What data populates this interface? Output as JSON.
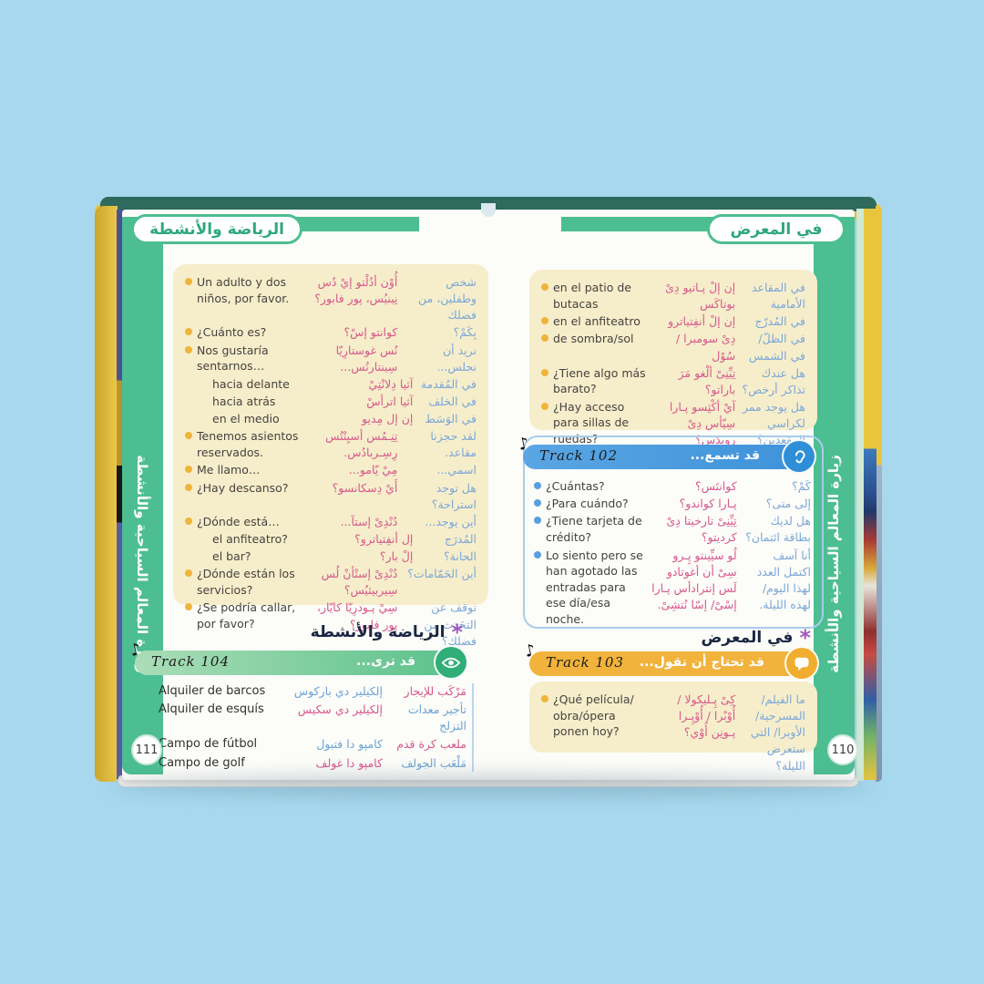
{
  "colors": {
    "background": "#a7d8ee",
    "green": "#4cbe92",
    "cream": "#f6eecb",
    "blue_bar": "#4f9fe0",
    "yellow_bar": "#f1b33b",
    "green_bar": "#5cc28b",
    "pink_text": "#d8578b",
    "blue_text": "#7ba7d8",
    "bullet_yellow": "#f0b43c",
    "bullet_blue": "#58a0dd",
    "asterisk_purple": "#a05ac0",
    "cover_yellow": "#e9c53d",
    "cover_teal": "#2e6b5c"
  },
  "icons": {
    "note": "♪",
    "eye": "eye-icon",
    "ear": "ear-icon",
    "speech": "speech-bubble-icon"
  },
  "left_page": {
    "header": "الرياضة والأنشطة",
    "sidebar": "زيارة المعالم السياحية والأنشطة",
    "page_number": "111",
    "phrases": [
      {
        "es": "Un adulto y dos niños, por favor.",
        "tr": "أُوْن أدُلْتو إيْ دُس نِينيُس، پور فابور؟",
        "ar": "شخص وطفلين، من فضلك"
      },
      {
        "es": "¿Cuánto es?",
        "tr": "كوانتو إسْ؟",
        "ar": "بِكَمْ؟"
      },
      {
        "es": "Nos gustaría sentarnos…",
        "tr": "نُس غوستارِيّا سِينتارنُس...",
        "ar": "نريد أن نجلس..."
      },
      {
        "es": "hacia delante",
        "tr": "آثيا دِلانْتِيْ",
        "ar": "في المُقدمة",
        "indent": true
      },
      {
        "es": "hacia atrás",
        "tr": "آثيا اترأسْ",
        "ar": "في الخلف",
        "indent": true
      },
      {
        "es": "en el medio",
        "tr": "إن إل مِديو",
        "ar": "في الوَسَط",
        "indent": true
      },
      {
        "es": "Tenemos asientos reservados.",
        "tr": "تِنِـمُس أسيِنْتُس رِسِـربادُس.",
        "ar": "لقد حجزنا مقاعد."
      },
      {
        "es": "Me llamo…",
        "tr": "مِيْ يّامو...",
        "ar": "اسمي..."
      },
      {
        "es": "¿Hay descanso?",
        "tr": "أَيْ دِسكانسو؟",
        "ar": "هل توجد استراحة؟"
      },
      {
        "es": "¿Dónde está…",
        "tr": "دُنْدِىْ إستآ...",
        "ar": "أين يوجد..."
      },
      {
        "es": "el anfiteatro?",
        "tr": "إل أنفِتياترو؟",
        "ar": "المُدرَج",
        "indent": true
      },
      {
        "es": "el bar?",
        "tr": "إلْ بار؟",
        "ar": "الحانة؟",
        "indent": true
      },
      {
        "es": "¿Dónde están los servicios?",
        "tr": "دُنْدِىْ إستْأنْ لُس سِيربيثيُس؟",
        "ar": "أين الحَمّامات؟"
      },
      {
        "es": "¿Se podría callar, por favor?",
        "tr": "سِيْ پـودرِيّا كايّار، پور فابور؟",
        "ar": "توقف عن التحَدث من فضلك؟"
      }
    ],
    "section": {
      "asterisk": "*",
      "title": "الرياضة والأنشطة",
      "track_label": "Track 104",
      "prompt": "قد ترى...",
      "icon": "eye-icon",
      "vocab": [
        {
          "es": "Alquiler de barcos",
          "tr": "إلكيلير دي باركوس",
          "ar": "مَرْكَب للإيجار"
        },
        {
          "es": "Alquiler de esquís",
          "tr": "إلكيلير دي سكيس",
          "ar": "تأجير معدات التزلج"
        },
        {
          "es": "Campo de fútbol",
          "tr": "كامپو دا فتبول",
          "ar": "ملعب كرة قدم"
        },
        {
          "es": "Campo de golf",
          "tr": "كامپو دا غولف",
          "ar": "مَلْعَب الجولف"
        }
      ]
    }
  },
  "right_page": {
    "header": "في المعرض",
    "sidebar": "زيارة المعالم السياحية والأنشطة",
    "page_number": "110",
    "phrases": [
      {
        "es": "en el patio de butacas",
        "tr": "إن إلْ پـاتيو دِىْ بوتاكَس",
        "ar": "في المقاعد الأمامية"
      },
      {
        "es": "en el anfiteatro",
        "tr": "إن إلْ أنفِتياترو",
        "ar": "في المُدرّج"
      },
      {
        "es": "de sombra/sol",
        "tr": "دِىْ سومبرا / سُوْل",
        "ar": "في الظلّ/ في الشمس"
      },
      {
        "es": "¿Tiene algo más barato?",
        "tr": "تِيِّنِىْ ألْغو مَرَ باراتو؟",
        "ar": "هل عندك تذاكر أرخص؟"
      },
      {
        "es": "¿Hay acceso para sillas de ruedas?",
        "tr": "آيْ أكْثِسو پـارا سِيّأس دِىْ رويدَس؟",
        "ar": "هل يوجد ممر لكراسي المقعدين؟"
      }
    ],
    "listen": {
      "track_label": "Track 102",
      "prompt": "قد تسمع...",
      "icon": "ear-icon",
      "rows": [
        {
          "es": "¿Cuántas?",
          "tr": "كوانتَس؟",
          "ar": "كَمْ؟"
        },
        {
          "es": "¿Para cuándo?",
          "tr": "پـارا كواندو؟",
          "ar": "إلى متى؟"
        },
        {
          "es": "¿Tiene tarjeta de crédito?",
          "tr": "تِيِّنِىْ تارخيتا دِىْ كرديتو؟",
          "ar": "هل لديك بطاقة ائتمان؟"
        },
        {
          "es": "Lo siento pero se han agotado las entradas para ese día/esa noche.",
          "tr": "لُو سيِّينتو پِـرو سِىْ أن أغوتادو لَس إنترادأس پـارا إسْىْ/ إسّا نُتشِىْ.",
          "ar": "أنا آسف اكتمل العدد لهذا اليوم/ لهذه الليلة."
        }
      ]
    },
    "section": {
      "asterisk": "*",
      "title": "في المعرض",
      "track_label": "Track 103",
      "prompt": "قد تحتاج أن تقول...",
      "icon": "speech-bubble-icon",
      "rows": [
        {
          "es": "¿Qué película/ obra/ópera ponen hoy?",
          "tr": "كِىْ پِـليكولا / أُوْبْرا / أُوْپِـرا پـونِن أُوْي؟",
          "ar": "ما الفيلم/ المسرحية/ الأوبرا/ التي ستعرض الليلة؟"
        }
      ]
    }
  }
}
